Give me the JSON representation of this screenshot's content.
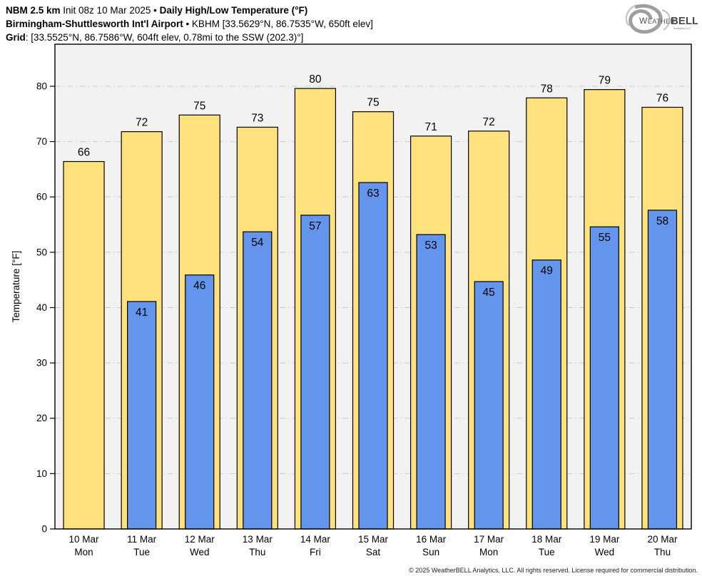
{
  "header": {
    "line1_bold1": "NBM 2.5 km",
    "line1_regular": " Init 08z 10 Mar 2025 • ",
    "line1_bold2": "Daily High/Low Temperature (°F)",
    "line2_bold": "Birmingham-Shuttlesworth Int'l Airport",
    "line2_regular": " • KBHM [33.5629°N, 86.7535°W, 650ft elev]",
    "line3_bold": "Grid",
    "line3_regular": ": [33.5525°N, 86.7586°W, 604ft elev, 0.78mi to the SSW (202.3)°]"
  },
  "logo": {
    "brand_left": "Weather",
    "brand_right": "BELL",
    "sub": "Analytics LLC"
  },
  "footer": {
    "copyright": "© 2025 WeatherBELL Analytics, LLC. All rights reserved. License required for commercial distribution."
  },
  "chart_data": {
    "type": "bar",
    "title": "NBM 2.5 km Daily High/Low Temperature (°F) — Birmingham-Shuttlesworth Int'l Airport (KBHM)",
    "xlabel": "",
    "ylabel": "Temperature [°F]",
    "ylim": [
      0,
      87.6
    ],
    "yticks": [
      0,
      10,
      20,
      30,
      40,
      50,
      60,
      70,
      80
    ],
    "grid": "horizontal dash-dot at 10..80",
    "legend_position": "none",
    "categories": [
      {
        "date": "10 Mar",
        "day": "Mon"
      },
      {
        "date": "11 Mar",
        "day": "Tue"
      },
      {
        "date": "12 Mar",
        "day": "Wed"
      },
      {
        "date": "13 Mar",
        "day": "Thu"
      },
      {
        "date": "14 Mar",
        "day": "Fri"
      },
      {
        "date": "15 Mar",
        "day": "Sat"
      },
      {
        "date": "16 Mar",
        "day": "Sun"
      },
      {
        "date": "17 Mar",
        "day": "Mon"
      },
      {
        "date": "18 Mar",
        "day": "Tue"
      },
      {
        "date": "19 Mar",
        "day": "Wed"
      },
      {
        "date": "20 Mar",
        "day": "Thu"
      }
    ],
    "series": [
      {
        "name": "Daily High",
        "color": "#FFE17D",
        "labels": [
          66,
          72,
          75,
          73,
          80,
          75,
          71,
          72,
          78,
          79,
          76
        ],
        "values": [
          66.4,
          71.8,
          74.8,
          72.6,
          79.6,
          75.4,
          71.0,
          71.9,
          77.9,
          79.4,
          76.2
        ]
      },
      {
        "name": "Daily Low",
        "color": "#6495ED",
        "labels": [
          null,
          41,
          46,
          54,
          57,
          63,
          53,
          45,
          49,
          55,
          58
        ],
        "values": [
          null,
          41.1,
          45.9,
          53.7,
          56.7,
          62.6,
          53.2,
          44.7,
          48.6,
          54.6,
          57.6
        ]
      }
    ],
    "colors": {
      "high_bar": "#FFE17D",
      "low_bar": "#6495ED",
      "bar_outline": "#000000",
      "plot_background": "#F2F2F2",
      "gridline": "#C9C9C9",
      "axis": "#000000",
      "label_text": "#000000"
    }
  }
}
